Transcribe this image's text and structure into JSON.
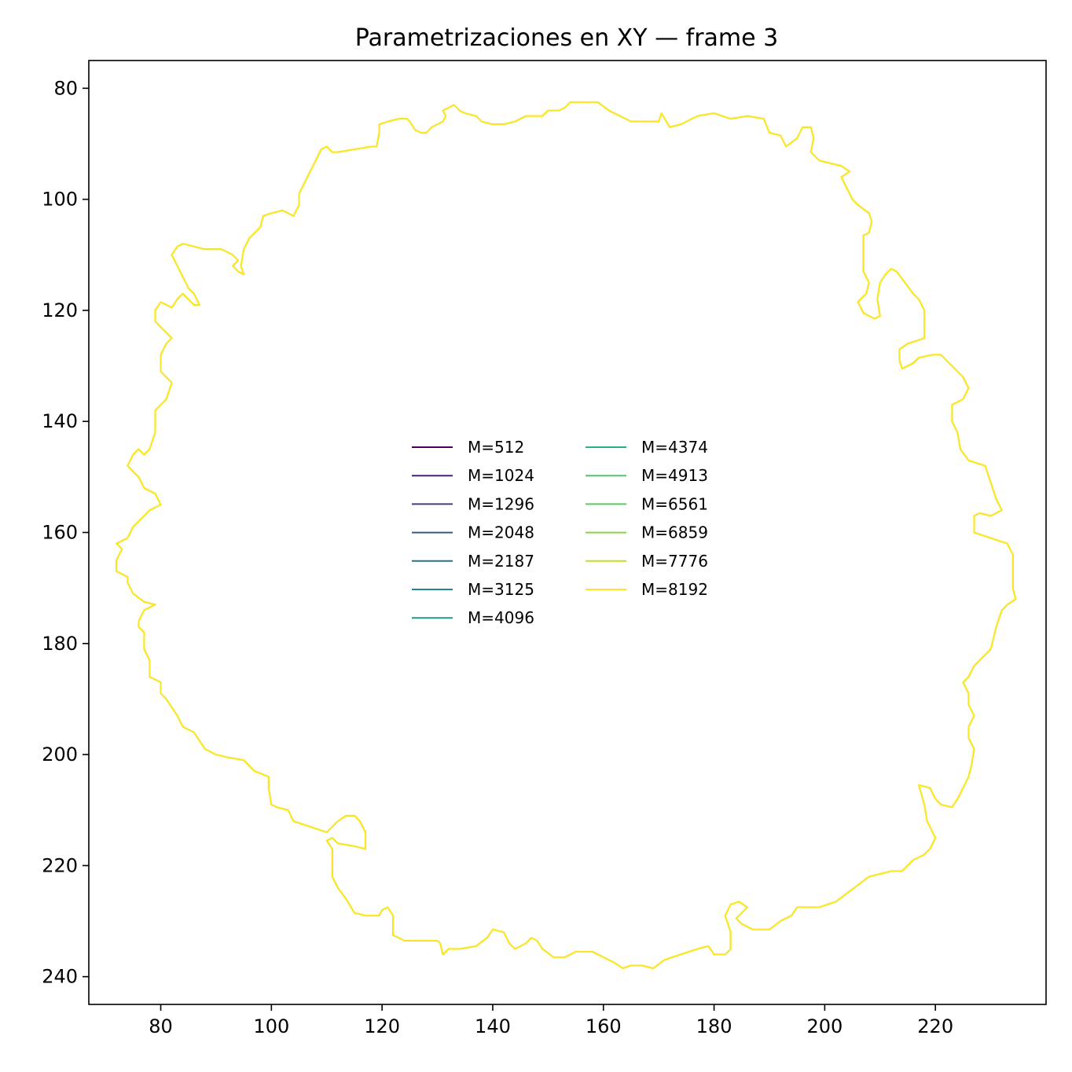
{
  "chart_data": {
    "type": "line",
    "title": "Parametrizaciones en XY — frame 3",
    "xlabel": "",
    "ylabel": "",
    "xlim": [
      67,
      240
    ],
    "ylim": [
      245,
      75
    ],
    "y_inverted": true,
    "x_ticks": [
      80,
      100,
      120,
      140,
      160,
      180,
      200,
      220
    ],
    "y_ticks": [
      80,
      100,
      120,
      140,
      160,
      180,
      200,
      220,
      240
    ],
    "grid": false,
    "legend_placement": "center",
    "legend_columns": 2,
    "series": [
      {
        "name": "M=512",
        "color": "#440154"
      },
      {
        "name": "M=1024",
        "color": "#482173"
      },
      {
        "name": "M=1296",
        "color": "#433e85"
      },
      {
        "name": "M=2048",
        "color": "#38588c"
      },
      {
        "name": "M=2187",
        "color": "#2d708e"
      },
      {
        "name": "M=3125",
        "color": "#25858e"
      },
      {
        "name": "M=4096",
        "color": "#1e9b8a"
      },
      {
        "name": "M=4374",
        "color": "#2ab07f"
      },
      {
        "name": "M=4913",
        "color": "#52c569"
      },
      {
        "name": "M=6561",
        "color": "#5ec962"
      },
      {
        "name": "M=6859",
        "color": "#86d549"
      },
      {
        "name": "M=7776",
        "color": "#c2df23"
      },
      {
        "name": "M=8192",
        "color": "#fde725"
      }
    ],
    "contour": [
      [
        155,
        82.5
      ],
      [
        159,
        82.5
      ],
      [
        161,
        84
      ],
      [
        165,
        86
      ],
      [
        170,
        86
      ],
      [
        170.5,
        84.5
      ],
      [
        172,
        87
      ],
      [
        174,
        86.5
      ],
      [
        177,
        85
      ],
      [
        180,
        84.5
      ],
      [
        183,
        85.5
      ],
      [
        186,
        85
      ],
      [
        189,
        85.5
      ],
      [
        190,
        88
      ],
      [
        192,
        88.5
      ],
      [
        193,
        90.5
      ],
      [
        195,
        89
      ],
      [
        196,
        87
      ],
      [
        197.5,
        87
      ],
      [
        198,
        89
      ],
      [
        197.5,
        91.5
      ],
      [
        199,
        93
      ],
      [
        201,
        93.5
      ],
      [
        203,
        94
      ],
      [
        204.5,
        95
      ],
      [
        203,
        96
      ],
      [
        204,
        98
      ],
      [
        205,
        100
      ],
      [
        206,
        101
      ],
      [
        208,
        102.5
      ],
      [
        208.5,
        104
      ],
      [
        208,
        106
      ],
      [
        207,
        106.5
      ],
      [
        207,
        110
      ],
      [
        207,
        113
      ],
      [
        208,
        115
      ],
      [
        207.5,
        117
      ],
      [
        206,
        118.5
      ],
      [
        207,
        120.5
      ],
      [
        209,
        121.5
      ],
      [
        210,
        121
      ],
      [
        209.5,
        118
      ],
      [
        210,
        115
      ],
      [
        211,
        113.5
      ],
      [
        212,
        112.5
      ],
      [
        213,
        113
      ],
      [
        214.5,
        115
      ],
      [
        216,
        117
      ],
      [
        217,
        118
      ],
      [
        218,
        120
      ],
      [
        218,
        123
      ],
      [
        218,
        125
      ],
      [
        215,
        126
      ],
      [
        213.5,
        127
      ],
      [
        213.5,
        129
      ],
      [
        214,
        130.5
      ],
      [
        216,
        129.5
      ],
      [
        217,
        128.5
      ],
      [
        219.5,
        128
      ],
      [
        221,
        128
      ],
      [
        222,
        129
      ],
      [
        223,
        130
      ],
      [
        225,
        132
      ],
      [
        226,
        134
      ],
      [
        225,
        136
      ],
      [
        223,
        137
      ],
      [
        223,
        140
      ],
      [
        224,
        142
      ],
      [
        224.5,
        145
      ],
      [
        226,
        147
      ],
      [
        229,
        148
      ],
      [
        230,
        151
      ],
      [
        231,
        154
      ],
      [
        232,
        156
      ],
      [
        230,
        157
      ],
      [
        228,
        156.5
      ],
      [
        227,
        157
      ],
      [
        227,
        158
      ],
      [
        227,
        160
      ],
      [
        230,
        161
      ],
      [
        233,
        162
      ],
      [
        234,
        164
      ],
      [
        234,
        168
      ],
      [
        234,
        170
      ],
      [
        234.5,
        172
      ],
      [
        233,
        173
      ],
      [
        232,
        174
      ],
      [
        231,
        177
      ],
      [
        230,
        181
      ],
      [
        227,
        184
      ],
      [
        226,
        186
      ],
      [
        225,
        187
      ],
      [
        226,
        189
      ],
      [
        226,
        191
      ],
      [
        227,
        193
      ],
      [
        226,
        195
      ],
      [
        226,
        197
      ],
      [
        227,
        199
      ],
      [
        226.5,
        202
      ],
      [
        226,
        204
      ],
      [
        225,
        206
      ],
      [
        224,
        208
      ],
      [
        223,
        209.5
      ],
      [
        221,
        209
      ],
      [
        220,
        208
      ],
      [
        219,
        206
      ],
      [
        217,
        205.5
      ],
      [
        218,
        209
      ],
      [
        218.5,
        212
      ],
      [
        220,
        215
      ],
      [
        219,
        217
      ],
      [
        218,
        218
      ],
      [
        216,
        219
      ],
      [
        214,
        221
      ],
      [
        212,
        221
      ],
      [
        210,
        221.5
      ],
      [
        208,
        222
      ],
      [
        206,
        223.5
      ],
      [
        204,
        225
      ],
      [
        202,
        226.5
      ],
      [
        199,
        227.5
      ],
      [
        195,
        227.5
      ],
      [
        194,
        229
      ],
      [
        192,
        230
      ],
      [
        190,
        231.5
      ],
      [
        187,
        231.5
      ],
      [
        185,
        230.5
      ],
      [
        184,
        229.5
      ],
      [
        186,
        227.5
      ],
      [
        184.5,
        226.5
      ],
      [
        183,
        227
      ],
      [
        182,
        229
      ],
      [
        183,
        232
      ],
      [
        183,
        235
      ],
      [
        182,
        236
      ],
      [
        180,
        236
      ],
      [
        179,
        234.5
      ],
      [
        177,
        235
      ],
      [
        174,
        236
      ],
      [
        171,
        237
      ],
      [
        169,
        238.5
      ],
      [
        167,
        238
      ],
      [
        165,
        238
      ],
      [
        163.5,
        238.5
      ],
      [
        162,
        237.5
      ],
      [
        160,
        236.5
      ],
      [
        158,
        235.5
      ],
      [
        155,
        235.5
      ],
      [
        153,
        236.5
      ],
      [
        151,
        236.5
      ],
      [
        149,
        235
      ],
      [
        148,
        233.5
      ],
      [
        147,
        233
      ],
      [
        146,
        234
      ],
      [
        144,
        235
      ],
      [
        143,
        234
      ],
      [
        142,
        232
      ],
      [
        140,
        231.5
      ],
      [
        139,
        233
      ],
      [
        137,
        234.5
      ],
      [
        134,
        235
      ],
      [
        132,
        235
      ],
      [
        131,
        236
      ],
      [
        130.5,
        234
      ],
      [
        130,
        233.5
      ],
      [
        127,
        233.5
      ],
      [
        124,
        233.5
      ],
      [
        122,
        232.5
      ],
      [
        122,
        229
      ],
      [
        121,
        227.5
      ],
      [
        120,
        228
      ],
      [
        119.5,
        229
      ],
      [
        117,
        229
      ],
      [
        115,
        228.5
      ],
      [
        113.5,
        226
      ],
      [
        112,
        224
      ],
      [
        111,
        222
      ],
      [
        111,
        217
      ],
      [
        110,
        215.5
      ],
      [
        111,
        215
      ],
      [
        112,
        216
      ],
      [
        115,
        216.5
      ],
      [
        117,
        217
      ],
      [
        117,
        214
      ],
      [
        116,
        212
      ],
      [
        115,
        211
      ],
      [
        113.5,
        211
      ],
      [
        112,
        212
      ],
      [
        110,
        214
      ],
      [
        107,
        213
      ],
      [
        104,
        212
      ],
      [
        103,
        210
      ],
      [
        101,
        209.5
      ],
      [
        100,
        209
      ],
      [
        99.5,
        206
      ],
      [
        99.5,
        204
      ],
      [
        97,
        203
      ],
      [
        95,
        201
      ],
      [
        92,
        200.5
      ],
      [
        90,
        200
      ],
      [
        88,
        199
      ],
      [
        86,
        196
      ],
      [
        84,
        195
      ],
      [
        83,
        193
      ],
      [
        81,
        190
      ],
      [
        80,
        189
      ],
      [
        80,
        187
      ],
      [
        78,
        186
      ],
      [
        78,
        183
      ],
      [
        77,
        181
      ],
      [
        77,
        178
      ],
      [
        76,
        177
      ],
      [
        76,
        176
      ],
      [
        77,
        174
      ],
      [
        79,
        173
      ],
      [
        77,
        172.5
      ],
      [
        75,
        171
      ],
      [
        74,
        169
      ],
      [
        74,
        168
      ],
      [
        72,
        167
      ],
      [
        72,
        165
      ],
      [
        73,
        163
      ],
      [
        72,
        162
      ],
      [
        74,
        161
      ],
      [
        75,
        159
      ],
      [
        76,
        158
      ],
      [
        78,
        156
      ],
      [
        80,
        155
      ],
      [
        79,
        153
      ],
      [
        77,
        152
      ],
      [
        76,
        150
      ],
      [
        75,
        149
      ],
      [
        74,
        148
      ],
      [
        75,
        146
      ],
      [
        76,
        145
      ],
      [
        77,
        146
      ],
      [
        78,
        145
      ],
      [
        79,
        142
      ],
      [
        79,
        138
      ],
      [
        80,
        137
      ],
      [
        81,
        136
      ],
      [
        82,
        133
      ],
      [
        80,
        131
      ],
      [
        80,
        128
      ],
      [
        81,
        126
      ],
      [
        82,
        125
      ],
      [
        81,
        124
      ],
      [
        80,
        123
      ],
      [
        79,
        122
      ],
      [
        79,
        120
      ],
      [
        80,
        118.5
      ],
      [
        81,
        119
      ],
      [
        82,
        119.5
      ],
      [
        83,
        118
      ],
      [
        84,
        117
      ],
      [
        85,
        118
      ],
      [
        86,
        119
      ],
      [
        87,
        119
      ],
      [
        86,
        117
      ],
      [
        85,
        116
      ],
      [
        84,
        114
      ],
      [
        83,
        112
      ],
      [
        82,
        110
      ],
      [
        83,
        108.5
      ],
      [
        84,
        108
      ],
      [
        86,
        108.5
      ],
      [
        88,
        109
      ],
      [
        91,
        109
      ],
      [
        93,
        110
      ],
      [
        94,
        111
      ],
      [
        93,
        112
      ],
      [
        94,
        113
      ],
      [
        95,
        113.5
      ],
      [
        94.5,
        112
      ],
      [
        95,
        109
      ],
      [
        96,
        107
      ],
      [
        98,
        105
      ],
      [
        98.5,
        103
      ],
      [
        100,
        102.5
      ],
      [
        102,
        102
      ],
      [
        104,
        103
      ],
      [
        105,
        101
      ],
      [
        105,
        99
      ],
      [
        106,
        97
      ],
      [
        107,
        95
      ],
      [
        108,
        93
      ],
      [
        109,
        91
      ],
      [
        110,
        90.5
      ],
      [
        111,
        91.5
      ],
      [
        112,
        91.5
      ],
      [
        115,
        91
      ],
      [
        118,
        90.5
      ],
      [
        119,
        90.5
      ],
      [
        119.5,
        88
      ],
      [
        119.5,
        86.5
      ],
      [
        121,
        86
      ],
      [
        123,
        85.5
      ],
      [
        124.5,
        85.5
      ],
      [
        125,
        86
      ],
      [
        126,
        87.5
      ],
      [
        127,
        88
      ],
      [
        128,
        88
      ],
      [
        129,
        87
      ],
      [
        130,
        86.5
      ],
      [
        131,
        86
      ],
      [
        131.5,
        85
      ],
      [
        131,
        84
      ],
      [
        132,
        83.5
      ],
      [
        133,
        83
      ],
      [
        134,
        84
      ],
      [
        135,
        84.5
      ],
      [
        137,
        85
      ],
      [
        138,
        86
      ],
      [
        140,
        86.5
      ],
      [
        142,
        86.5
      ],
      [
        144,
        86
      ],
      [
        146,
        85
      ],
      [
        148,
        85
      ],
      [
        149,
        85
      ],
      [
        150,
        84
      ],
      [
        152,
        84
      ],
      [
        153,
        83.5
      ],
      [
        154,
        82.5
      ],
      [
        155,
        82.5
      ]
    ]
  }
}
